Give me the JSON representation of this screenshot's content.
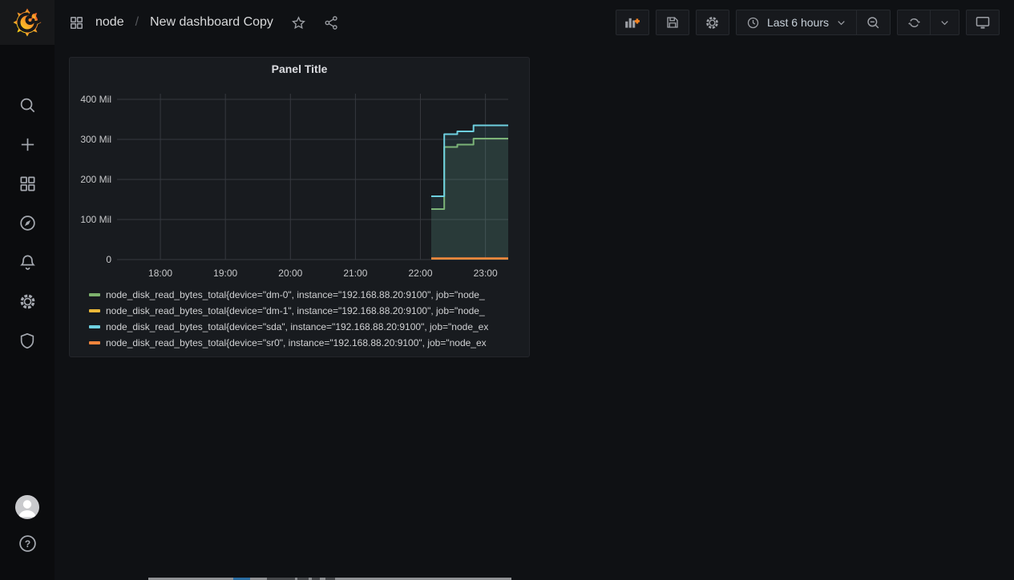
{
  "app": {
    "name": "Grafana",
    "accent_orange": "#f58220"
  },
  "sidebar": {
    "items": [
      {
        "icon": "grafana-logo"
      },
      {
        "icon": "search-icon"
      },
      {
        "icon": "plus-icon"
      },
      {
        "icon": "dashboards-icon"
      },
      {
        "icon": "explore-compass-icon"
      },
      {
        "icon": "alerting-bell-icon"
      },
      {
        "icon": "configuration-gear-icon"
      },
      {
        "icon": "server-admin-shield-icon"
      },
      {
        "icon": "user-avatar"
      },
      {
        "icon": "help-question-icon"
      }
    ]
  },
  "nav": {
    "breadcrumb": {
      "section": "node",
      "separator": "/",
      "title": "New dashboard Copy"
    },
    "toolbar": {
      "icons": [
        "add-panel-icon",
        "save-icon",
        "gear-icon",
        "clock-icon",
        "zoom-out-icon",
        "refresh-icon",
        "chevron-down-icon",
        "tv-icon"
      ],
      "time_picker": {
        "label": "Last 6 hours"
      }
    }
  },
  "panel": {
    "title": "Panel Title"
  },
  "chart_data": {
    "type": "line",
    "step": true,
    "title": "Panel Title",
    "grid": true,
    "legend_position": "bottom",
    "x_unit": "minutes_since_midnight",
    "x_axis": {
      "range": [
        1040,
        1401
      ],
      "ticks": [
        {
          "t": 1080,
          "label": "18:00"
        },
        {
          "t": 1140,
          "label": "19:00"
        },
        {
          "t": 1200,
          "label": "20:00"
        },
        {
          "t": 1260,
          "label": "21:00"
        },
        {
          "t": 1320,
          "label": "22:00"
        },
        {
          "t": 1380,
          "label": "23:00"
        }
      ]
    },
    "y_axis": {
      "unit": "Mil",
      "range": [
        0,
        414
      ],
      "ticks": [
        {
          "v": 0,
          "label": "0"
        },
        {
          "v": 100,
          "label": "100 Mil"
        },
        {
          "v": 200,
          "label": "200 Mil"
        },
        {
          "v": 300,
          "label": "300 Mil"
        },
        {
          "v": 400,
          "label": "400 Mil"
        }
      ]
    },
    "series": [
      {
        "label": "node_disk_read_bytes_total{device=\"dm-0\", instance=\"192.168.88.20:9100\", job=\"node_",
        "color": "#7EB26D",
        "fill_opacity": 0.1,
        "line_width": 2,
        "points": [
          [
            1330,
            126
          ],
          [
            1342,
            126
          ],
          [
            1342,
            281
          ],
          [
            1354,
            281
          ],
          [
            1354,
            287
          ],
          [
            1369,
            287
          ],
          [
            1369,
            302
          ],
          [
            1401,
            302
          ]
        ]
      },
      {
        "label": "node_disk_read_bytes_total{device=\"dm-1\", instance=\"192.168.88.20:9100\", job=\"node_",
        "color": "#EAB839",
        "fill_opacity": 0.1,
        "line_width": 2,
        "points": [
          [
            1330,
            2
          ],
          [
            1401,
            2
          ]
        ]
      },
      {
        "label": "node_disk_read_bytes_total{device=\"sda\", instance=\"192.168.88.20:9100\", job=\"node_ex",
        "color": "#6ED0E0",
        "fill_opacity": 0.1,
        "line_width": 2,
        "points": [
          [
            1330,
            158
          ],
          [
            1342,
            158
          ],
          [
            1342,
            313
          ],
          [
            1354,
            313
          ],
          [
            1354,
            320
          ],
          [
            1369,
            320
          ],
          [
            1369,
            335
          ],
          [
            1401,
            335
          ]
        ]
      },
      {
        "label": "node_disk_read_bytes_total{device=\"sr0\", instance=\"192.168.88.20:9100\", job=\"node_ex",
        "color": "#EF843C",
        "fill_opacity": 0.1,
        "line_width": 2.5,
        "points": [
          [
            1330,
            3
          ],
          [
            1401,
            3
          ]
        ]
      }
    ]
  },
  "bottom_strip": {
    "base_color": "#8f9194",
    "accent_color": "#2b6ea3",
    "dark_color": "#46484b"
  }
}
